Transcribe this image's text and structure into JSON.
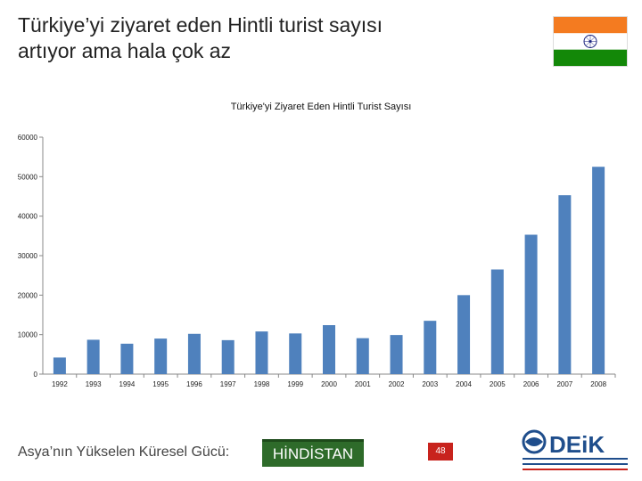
{
  "slide": {
    "title_line1": "Türkiye’yi ziyaret eden Hintli turist sayısı",
    "title_line2": "artıyor ama hala çok az",
    "footer_text": "Asya’nın Yükselen Küresel Gücü:",
    "footer_highlight": "HİNDİSTAN",
    "page_number": "48",
    "logo_text": "DEiK"
  },
  "colors": {
    "bar": "#4f81bd",
    "flag_saffron": "#f47b20",
    "flag_green": "#138808",
    "chakra": "#1a237e",
    "footer_green": "#2e6b2a",
    "badge_red": "#c8231d",
    "logo_blue": "#1f4e8c"
  },
  "chart_data": {
    "type": "bar",
    "title": "Türkiye'yi Ziyaret Eden Hintli Turist Sayısı",
    "categories": [
      "1992",
      "1993",
      "1994",
      "1995",
      "1996",
      "1997",
      "1998",
      "1999",
      "2000",
      "2001",
      "2002",
      "2003",
      "2004",
      "2005",
      "2006",
      "2007",
      "2008"
    ],
    "values": [
      4200,
      8700,
      7700,
      9000,
      10200,
      8600,
      10800,
      10300,
      12400,
      9100,
      9900,
      13500,
      20000,
      26500,
      35300,
      45300,
      52500
    ],
    "yticks": [
      "0",
      "10000",
      "20000",
      "30000",
      "40000",
      "50000",
      "60000"
    ],
    "ylim": [
      0,
      60000
    ],
    "grid": false,
    "legend": "none"
  }
}
